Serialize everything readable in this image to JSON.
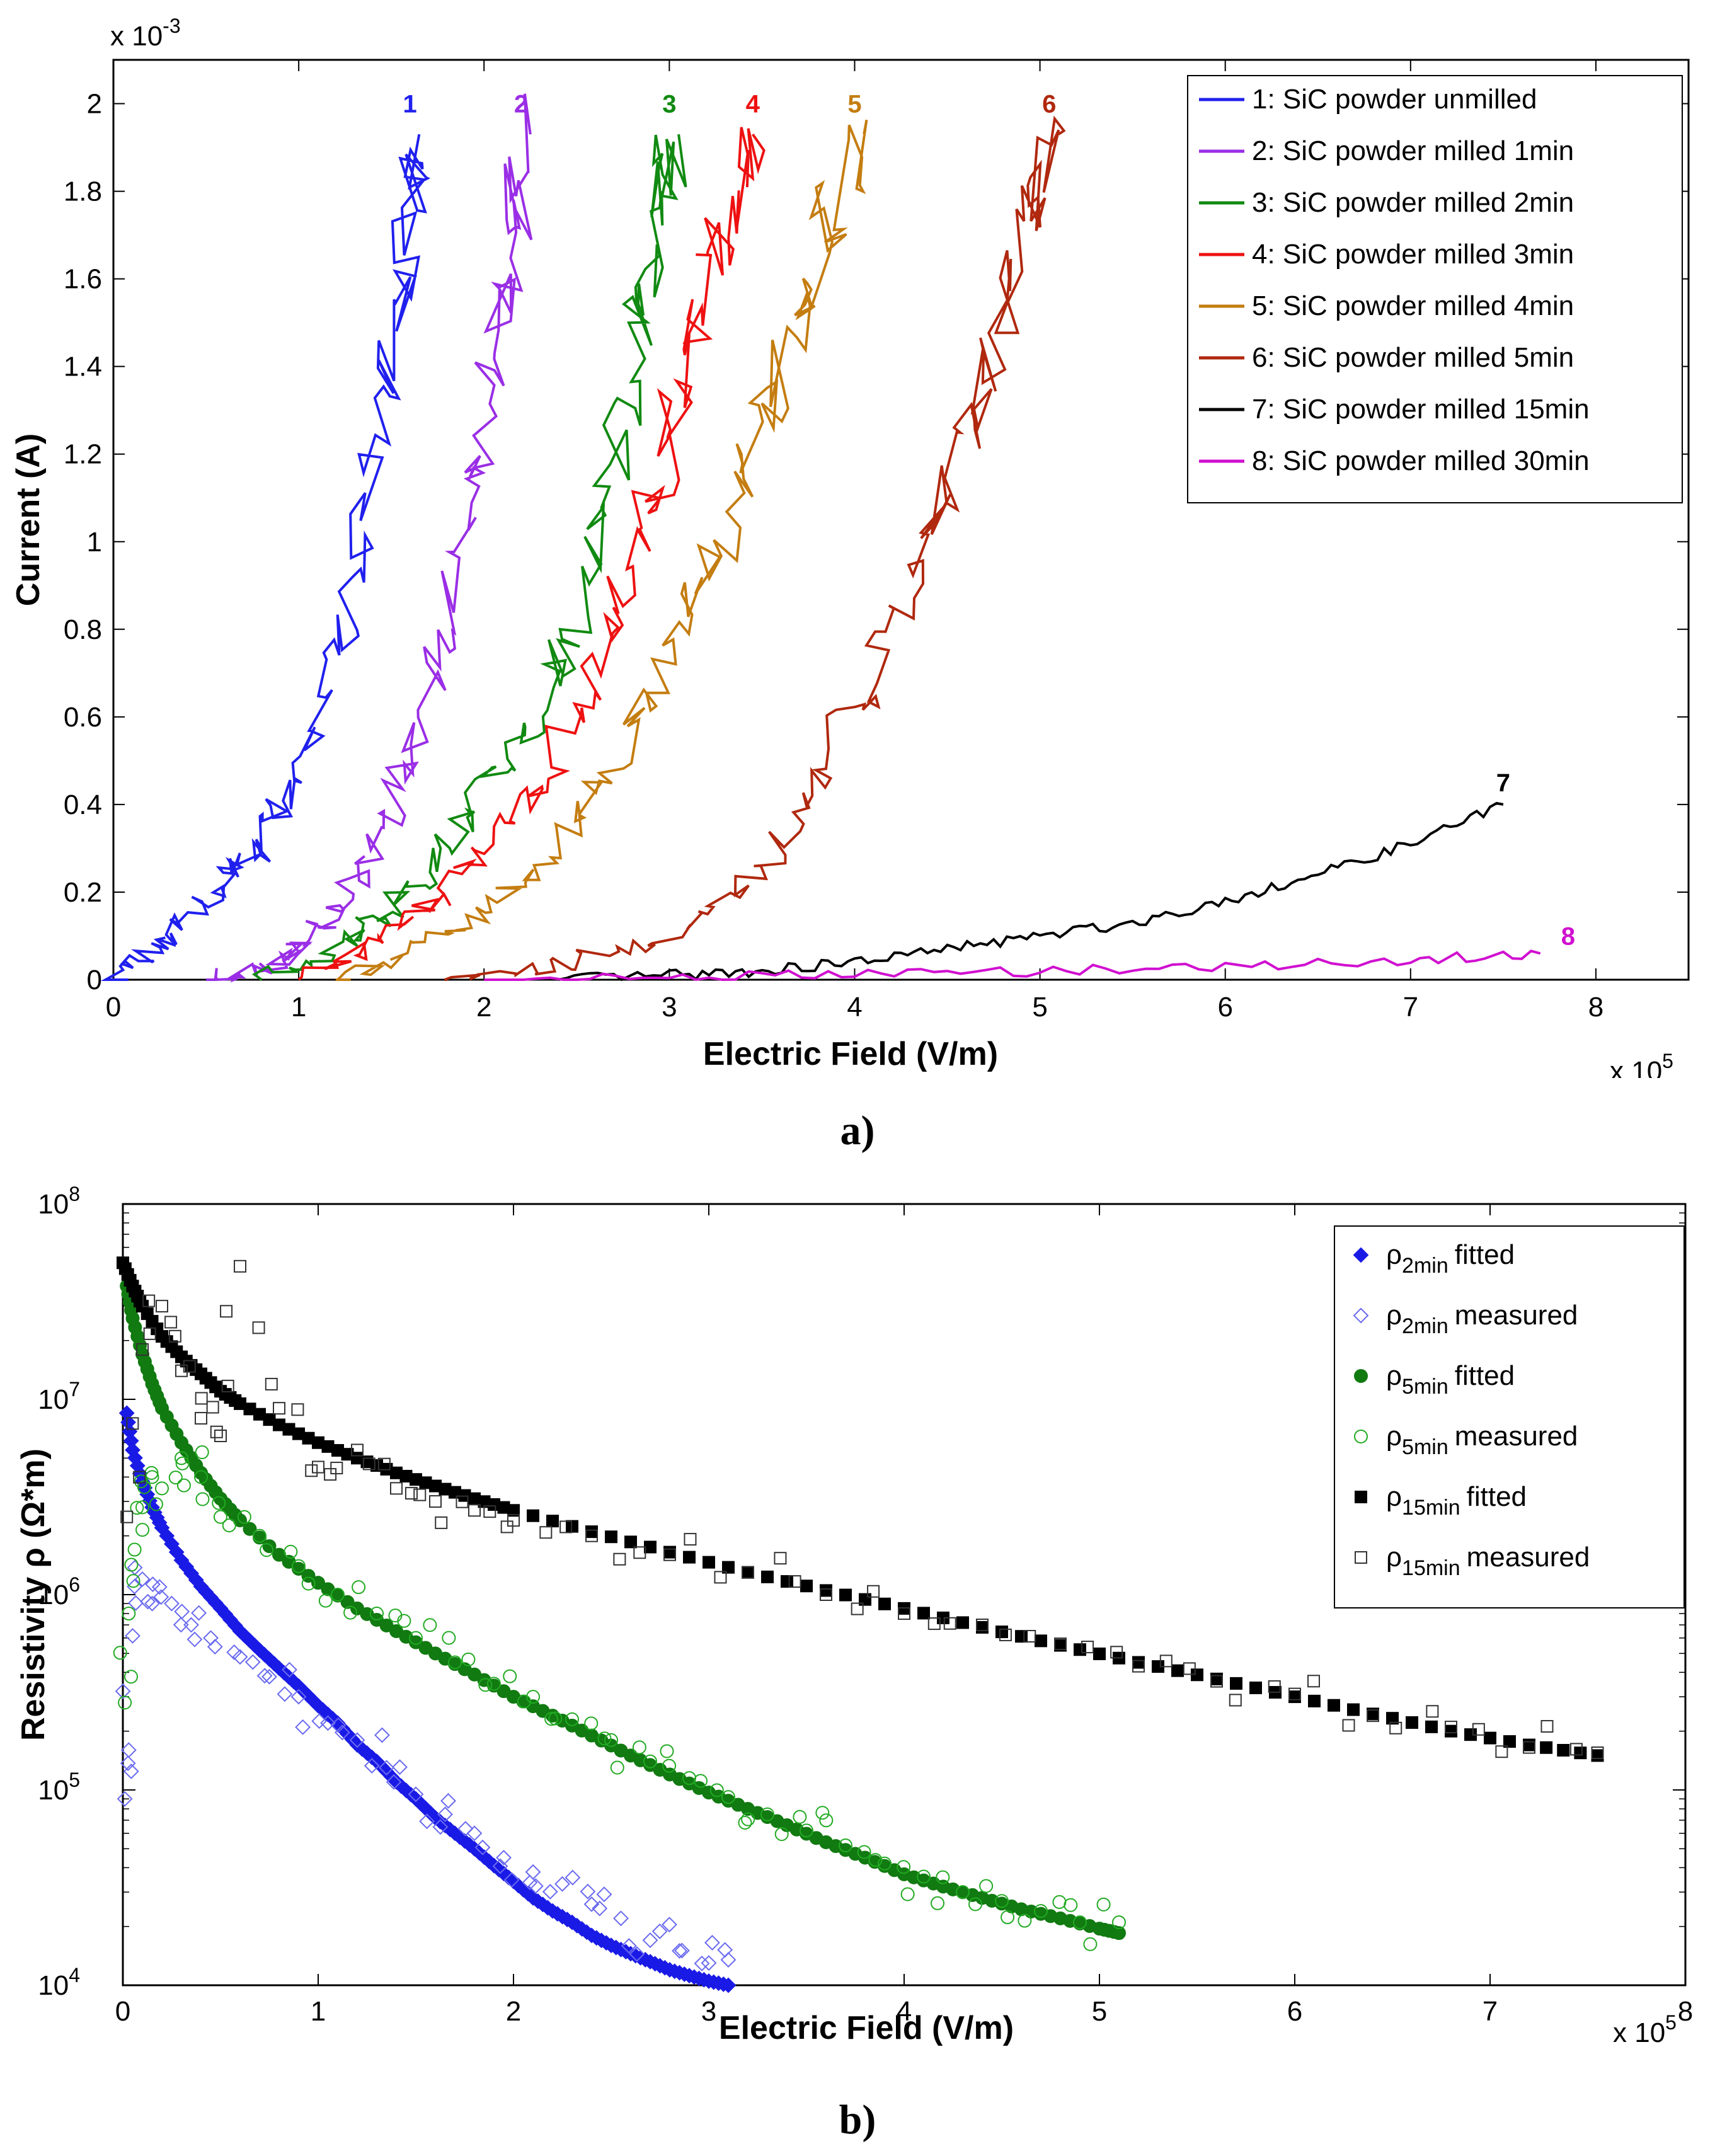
{
  "chart_data": [
    {
      "id": "a",
      "type": "line",
      "caption": "a)",
      "xlabel": "Electric Field (V/m)",
      "ylabel": "Current (A)",
      "x_multiplier": "x 10",
      "x_multiplier_exp": "5",
      "y_multiplier": "x 10",
      "y_multiplier_exp": "-3",
      "xlim": [
        0,
        8.5
      ],
      "ylim": [
        0,
        2.1
      ],
      "xticks": [
        0,
        1,
        2,
        3,
        4,
        5,
        6,
        7,
        8
      ],
      "xtick_labels": [
        "0",
        "1",
        "2",
        "3",
        "4",
        "5",
        "6",
        "7",
        "8"
      ],
      "yticks": [
        0,
        0.2,
        0.4,
        0.6,
        0.8,
        1.0,
        1.2,
        1.4,
        1.6,
        1.8,
        2.0
      ],
      "ytick_labels": [
        "0",
        "0.2",
        "0.4",
        "0.6",
        "0.8",
        "1",
        "1.2",
        "1.4",
        "1.6",
        "1.8",
        "2"
      ],
      "legend_position": "top-right",
      "series": [
        {
          "name": "1: SiC powder unmilled",
          "label": "1",
          "color": "#2020ee",
          "x": [
            0,
            0.2,
            0.4,
            0.6,
            0.8,
            1.0,
            1.2,
            1.35,
            1.5,
            1.6,
            1.65
          ],
          "y": [
            0,
            0.06,
            0.14,
            0.22,
            0.31,
            0.44,
            0.7,
            1.05,
            1.4,
            1.75,
            1.93
          ],
          "label_x": 1.6,
          "label_y": 2.0
        },
        {
          "name": "2: SiC powder milled 1min",
          "label": "2",
          "color": "#9a2ee6",
          "x": [
            0.5,
            0.8,
            1.0,
            1.2,
            1.4,
            1.6,
            1.8,
            1.95,
            2.05,
            2.15,
            2.25
          ],
          "y": [
            0,
            0.03,
            0.07,
            0.15,
            0.3,
            0.5,
            0.8,
            1.15,
            1.45,
            1.7,
            1.93
          ],
          "label_x": 2.2,
          "label_y": 2.0
        },
        {
          "name": "3: SiC powder milled 2min",
          "label": "3",
          "color": "#118a11",
          "x": [
            0.8,
            1.2,
            1.5,
            1.8,
            2.0,
            2.3,
            2.5,
            2.7,
            2.85,
            2.95,
            3.05
          ],
          "y": [
            0,
            0.08,
            0.16,
            0.3,
            0.45,
            0.6,
            0.85,
            1.2,
            1.5,
            1.75,
            1.93
          ],
          "label_x": 3.0,
          "label_y": 2.0
        },
        {
          "name": "4: SiC powder milled 3min",
          "label": "4",
          "color": "#ee1111",
          "x": [
            1.0,
            1.4,
            1.7,
            2.0,
            2.3,
            2.6,
            2.8,
            3.0,
            3.15,
            3.3,
            3.45
          ],
          "y": [
            0,
            0.08,
            0.17,
            0.3,
            0.45,
            0.7,
            0.95,
            1.25,
            1.5,
            1.75,
            1.93
          ],
          "label_x": 3.45,
          "label_y": 2.0
        },
        {
          "name": "5: SiC powder milled 4min",
          "label": "5",
          "color": "#c47d10",
          "x": [
            1.2,
            1.6,
            2.0,
            2.4,
            2.7,
            3.0,
            3.3,
            3.5,
            3.7,
            3.85,
            4.05
          ],
          "y": [
            0,
            0.06,
            0.15,
            0.3,
            0.5,
            0.75,
            1.0,
            1.25,
            1.5,
            1.72,
            1.93
          ],
          "label_x": 4.0,
          "label_y": 2.0
        },
        {
          "name": "6: SiC powder milled 5min",
          "label": "6",
          "color": "#b0280e",
          "x": [
            1.8,
            2.4,
            3.0,
            3.5,
            3.8,
            4.1,
            4.4,
            4.6,
            4.8,
            4.95,
            5.1
          ],
          "y": [
            0,
            0.03,
            0.1,
            0.25,
            0.45,
            0.7,
            1.0,
            1.25,
            1.5,
            1.75,
            1.93
          ],
          "label_x": 5.05,
          "label_y": 2.0
        },
        {
          "name": "7: SiC powder milled 15min",
          "label": "7",
          "color": "#000000",
          "x": [
            2.4,
            3.0,
            3.5,
            4.0,
            4.5,
            5.0,
            5.5,
            6.0,
            6.5,
            7.0,
            7.5
          ],
          "y": [
            0,
            0.01,
            0.02,
            0.04,
            0.07,
            0.1,
            0.13,
            0.18,
            0.24,
            0.31,
            0.4
          ],
          "label_x": 7.5,
          "label_y": 0.45
        },
        {
          "name": "8: SiC powder milled 30min",
          "label": "8",
          "color": "#d010d0",
          "x": [
            2.0,
            3.0,
            4.0,
            5.0,
            6.0,
            7.0,
            7.7
          ],
          "y": [
            0,
            0.005,
            0.012,
            0.02,
            0.03,
            0.045,
            0.06
          ],
          "label_x": 7.85,
          "label_y": 0.1
        }
      ]
    },
    {
      "id": "b",
      "type": "scatter",
      "caption": "b)",
      "xlabel": "Electric Field (V/m)",
      "ylabel": "Resistivity ρ (Ω*m)",
      "x_multiplier": "x 10",
      "x_multiplier_exp": "5",
      "yscale": "log",
      "xlim": [
        0,
        8
      ],
      "ylim": [
        10000,
        100000000
      ],
      "xticks": [
        0,
        1,
        2,
        3,
        4,
        5,
        6,
        7,
        8
      ],
      "xtick_labels": [
        "0",
        "1",
        "2",
        "3",
        "4",
        "5",
        "6",
        "7",
        "8"
      ],
      "ytick_base": "10",
      "ytick_exponents": [
        "4",
        "5",
        "6",
        "7",
        "8"
      ],
      "legend_position": "top-right",
      "series": [
        {
          "symbol": "ρ",
          "subscript": "2min",
          "suffix": "fitted",
          "marker": "diamond-filled",
          "color": "#1a1ae6",
          "x": [
            0.02,
            0.05,
            0.1,
            0.15,
            0.2,
            0.3,
            0.4,
            0.5,
            0.6,
            0.7,
            0.8,
            0.9,
            1.0,
            1.1,
            1.2,
            1.3,
            1.4,
            1.5,
            1.6,
            1.7,
            1.8,
            1.9,
            2.0,
            2.1,
            2.2,
            2.3,
            2.4,
            2.5,
            2.6,
            2.7,
            2.8,
            2.9,
            3.0,
            3.1
          ],
          "y": [
            8500000,
            5500000,
            3800000,
            2800000,
            2200000,
            1500000,
            1100000,
            850000,
            650000,
            520000,
            420000,
            340000,
            270000,
            220000,
            170000,
            140000,
            110000,
            90000,
            72000,
            60000,
            50000,
            41000,
            34000,
            28000,
            24000,
            21000,
            18000,
            16000,
            14500,
            13200,
            12000,
            11200,
            10500,
            10000
          ]
        },
        {
          "symbol": "ρ",
          "subscript": "2min",
          "suffix": "measured",
          "marker": "diamond-open",
          "color": "#6a6af0",
          "x": [
            0.01,
            0.03,
            0.06,
            0.1,
            0.15,
            0.25,
            0.35,
            0.45,
            0.6,
            0.75,
            0.9,
            1.05,
            1.2,
            1.35,
            1.5,
            1.65,
            1.8,
            1.95,
            2.1,
            2.25,
            2.4,
            2.55,
            2.7,
            2.85,
            3.0,
            3.1
          ],
          "y": [
            90000,
            160000,
            1100000,
            1200000,
            900000,
            900000,
            700000,
            600000,
            480000,
            380000,
            300000,
            220000,
            180000,
            130000,
            95000,
            75000,
            60000,
            45000,
            38000,
            33000,
            26000,
            22000,
            17000,
            15000,
            13000,
            13500
          ]
        },
        {
          "symbol": "ρ",
          "subscript": "5min",
          "suffix": "fitted",
          "marker": "circle-filled",
          "color": "#117a11",
          "x": [
            0.02,
            0.05,
            0.1,
            0.15,
            0.2,
            0.3,
            0.4,
            0.5,
            0.6,
            0.8,
            1.0,
            1.2,
            1.4,
            1.6,
            1.8,
            2.0,
            2.2,
            2.4,
            2.6,
            2.8,
            3.0,
            3.2,
            3.4,
            3.6,
            3.8,
            4.0,
            4.2,
            4.4,
            4.6,
            4.8,
            5.0,
            5.1
          ],
          "y": [
            38000000,
            26000000,
            17000000,
            12000000,
            9000000,
            6000000,
            4200000,
            3100000,
            2400000,
            1600000,
            1150000,
            850000,
            650000,
            500000,
            390000,
            300000,
            240000,
            190000,
            150000,
            120000,
            97000,
            80000,
            66000,
            54000,
            45000,
            37000,
            32000,
            28000,
            24500,
            22000,
            19500,
            18500
          ]
        },
        {
          "symbol": "ρ",
          "subscript": "5min",
          "suffix": "measured",
          "marker": "circle-open",
          "color": "#22aa22",
          "x": [
            0.01,
            0.03,
            0.06,
            0.1,
            0.15,
            0.2,
            0.3,
            0.4,
            0.5,
            0.7,
            0.9,
            1.1,
            1.3,
            1.5,
            1.7,
            1.9,
            2.1,
            2.3,
            2.5,
            2.7,
            2.9,
            3.1,
            3.3,
            3.5,
            3.7,
            3.9,
            4.1,
            4.3,
            4.5,
            4.7,
            4.9,
            5.1
          ],
          "y": [
            280000,
            800000,
            1700000,
            2800000,
            4000000,
            3500000,
            5000000,
            4000000,
            2500000,
            2000000,
            1400000,
            1000000,
            800000,
            600000,
            450000,
            350000,
            300000,
            230000,
            180000,
            140000,
            115000,
            92000,
            75000,
            62000,
            52000,
            42000,
            36000,
            30000,
            27000,
            24000,
            21000,
            21000
          ]
        },
        {
          "symbol": "ρ",
          "subscript": "15min",
          "suffix": "fitted",
          "marker": "square-filled",
          "color": "#000000",
          "x": [
            0.0,
            0.05,
            0.1,
            0.2,
            0.3,
            0.4,
            0.5,
            0.6,
            0.8,
            1.0,
            1.2,
            1.4,
            1.6,
            1.8,
            2.0,
            2.4,
            2.8,
            3.2,
            3.6,
            4.0,
            4.4,
            4.8,
            5.2,
            5.6,
            6.0,
            6.4,
            6.8,
            7.2,
            7.55
          ],
          "y": [
            50000000,
            38000000,
            30000000,
            21000000,
            16500000,
            13500000,
            11000000,
            9500000,
            7400000,
            6000000,
            5000000,
            4200000,
            3600000,
            3100000,
            2700000,
            2100000,
            1650000,
            1300000,
            1050000,
            850000,
            680000,
            550000,
            450000,
            370000,
            300000,
            245000,
            200000,
            170000,
            150000
          ]
        },
        {
          "symbol": "ρ",
          "subscript": "15min",
          "suffix": "measured",
          "marker": "square-open",
          "color": "#333333",
          "x": [
            0.02,
            0.1,
            0.2,
            0.3,
            0.4,
            0.5,
            0.6,
            0.8,
            1.0,
            1.2,
            1.4,
            1.6,
            1.8,
            2.0,
            2.4,
            2.8,
            3.2,
            3.6,
            4.0,
            4.4,
            4.8,
            5.2,
            5.6,
            6.0,
            6.4,
            6.8,
            7.2,
            7.55
          ],
          "y": [
            2500000,
            18000000,
            30000000,
            14000000,
            8000000,
            6500000,
            48000000,
            9000000,
            4500000,
            5500000,
            3500000,
            3000000,
            2700000,
            2400000,
            2000000,
            1600000,
            1300000,
            1000000,
            800000,
            700000,
            560000,
            430000,
            360000,
            310000,
            240000,
            210000,
            165000,
            155000
          ]
        }
      ]
    }
  ]
}
